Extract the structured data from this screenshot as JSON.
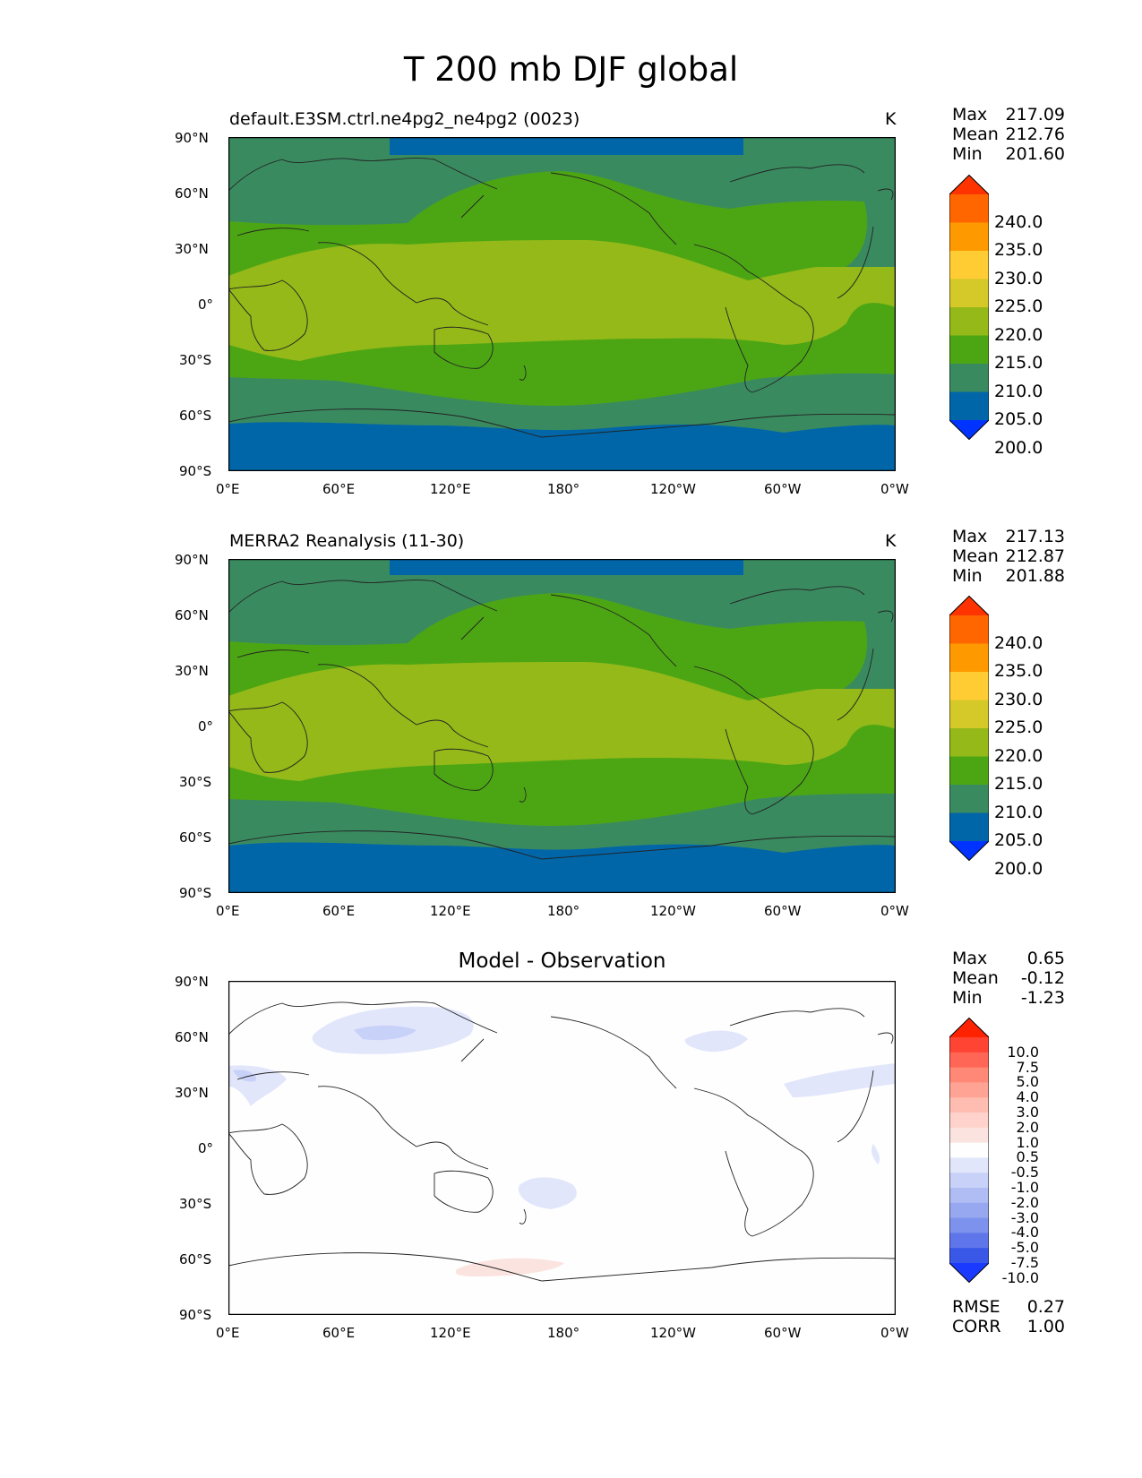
{
  "title": "T 200 mb DJF global",
  "panels": [
    {
      "id": "test",
      "title": "default.E3SM.ctrl.ne4pg2_ne4pg2 (0023)",
      "unit": "K",
      "stats": [
        {
          "label": "Max",
          "value": "217.09"
        },
        {
          "label": "Mean",
          "value": "212.76"
        },
        {
          "label": "Min",
          "value": "201.60"
        }
      ],
      "colorbar": {
        "labels": [
          "240.0",
          "235.0",
          "230.0",
          "225.0",
          "220.0",
          "215.0",
          "210.0",
          "205.0",
          "200.0"
        ],
        "colors": [
          "#ff3300",
          "#ff6600",
          "#ff9900",
          "#ffcc33",
          "#d4c929",
          "#94b919",
          "#4ca614",
          "#3a8a60",
          "#0066a8",
          "#0033ff"
        ]
      }
    },
    {
      "id": "ref",
      "title": "MERRA2 Reanalysis (11-30)",
      "unit": "K",
      "stats": [
        {
          "label": "Max",
          "value": "217.13"
        },
        {
          "label": "Mean",
          "value": "212.87"
        },
        {
          "label": "Min",
          "value": "201.88"
        }
      ],
      "colorbar": {
        "labels": [
          "240.0",
          "235.0",
          "230.0",
          "225.0",
          "220.0",
          "215.0",
          "210.0",
          "205.0",
          "200.0"
        ],
        "colors": [
          "#ff3300",
          "#ff6600",
          "#ff9900",
          "#ffcc33",
          "#d4c929",
          "#94b919",
          "#4ca614",
          "#3a8a60",
          "#0066a8",
          "#0033ff"
        ]
      }
    },
    {
      "id": "diff",
      "title": "Model - Observation",
      "stats": [
        {
          "label": "Max",
          "value": "0.65"
        },
        {
          "label": "Mean",
          "value": "-0.12"
        },
        {
          "label": "Min",
          "value": "-1.23"
        }
      ],
      "extra_stats": [
        {
          "label": "RMSE",
          "value": "0.27"
        },
        {
          "label": "CORR",
          "value": "1.00"
        }
      ],
      "colorbar": {
        "labels": [
          "10.0",
          "7.5",
          "5.0",
          "4.0",
          "3.0",
          "2.0",
          "1.0",
          "0.5",
          "-0.5",
          "-1.0",
          "-2.0",
          "-3.0",
          "-4.0",
          "-5.0",
          "-7.5",
          "-10.0"
        ],
        "colors": [
          "#ff2200",
          "#ff4433",
          "#ff6655",
          "#ff8877",
          "#ffa395",
          "#ffbcb0",
          "#ffd3cb",
          "#fbe4df",
          "#fefefe",
          "#e2e6fb",
          "#c8d1f8",
          "#b0bdf5",
          "#97a8f1",
          "#7d92ed",
          "#5f76ea",
          "#3a58e8",
          "#1a3bff"
        ]
      }
    }
  ],
  "axes": {
    "lat_ticks": [
      "90°N",
      "60°N",
      "30°N",
      "0°",
      "30°S",
      "60°S",
      "90°S"
    ],
    "lon_ticks": [
      "0°E",
      "60°E",
      "120°E",
      "180°",
      "120°W",
      "60°W",
      "0°W"
    ]
  },
  "chart_data": {
    "type": "heatmap",
    "variable": "T",
    "level": "200 mb",
    "season": "DJF",
    "region": "global",
    "x_range": [
      0,
      360
    ],
    "y_range": [
      -90,
      90
    ],
    "zonal_band_values_K": {
      "note_lat": [
        90,
        75,
        60,
        45,
        30,
        15,
        0,
        -15,
        -30,
        -45,
        -60,
        -75,
        -90
      ],
      "test": [
        204,
        207,
        211,
        212,
        214,
        217,
        217,
        217,
        214,
        211,
        209,
        206,
        203
      ],
      "ref": [
        204,
        207,
        211,
        212,
        214,
        217,
        217,
        217,
        214,
        211,
        209,
        206,
        203
      ]
    }
  }
}
